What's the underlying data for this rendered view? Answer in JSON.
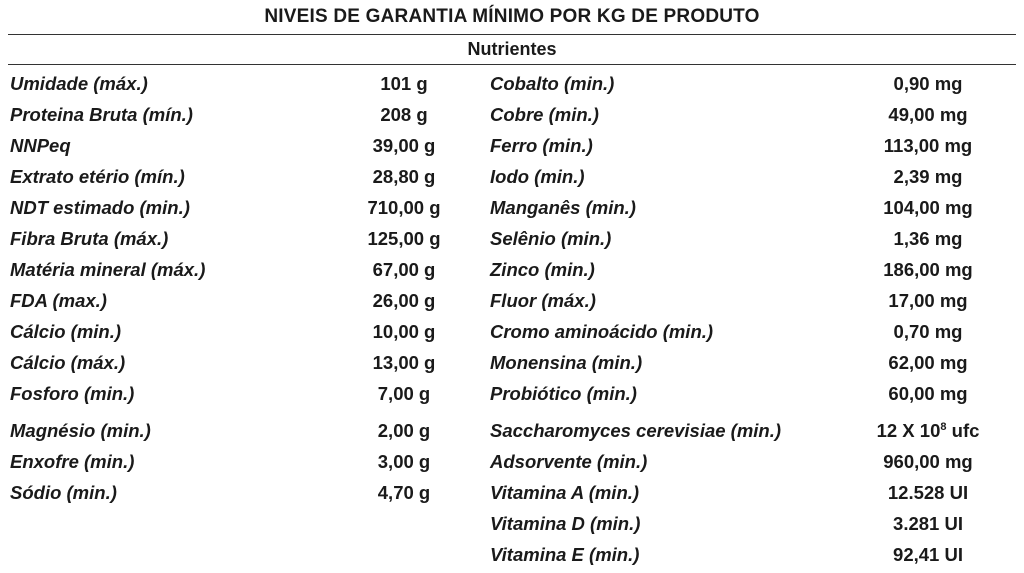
{
  "title": "NIVEIS DE GARANTIA MÍNIMO POR KG DE PRODUTO",
  "section": "Nutrientes",
  "left": [
    {
      "name": "Umidade (máx.)",
      "value": "101 g"
    },
    {
      "name": "Proteina Bruta (mín.)",
      "value": "208 g"
    },
    {
      "name": "NNPeq",
      "value": "39,00 g"
    },
    {
      "name": "Extrato etério (mín.)",
      "value": "28,80 g"
    },
    {
      "name": "NDT estimado (min.)",
      "value": "710,00 g"
    },
    {
      "name": "Fibra Bruta (máx.)",
      "value": "125,00 g"
    },
    {
      "name": "Matéria mineral (máx.)",
      "value": "67,00 g"
    },
    {
      "name": "FDA (max.)",
      "value": "26,00 g"
    },
    {
      "name": "Cálcio (min.)",
      "value": "10,00 g"
    },
    {
      "name": "Cálcio (máx.)",
      "value": "13,00 g"
    },
    {
      "name": "Fosforo (min.)",
      "value": "7,00 g"
    },
    {
      "name": "Magnésio (min.)",
      "value": "2,00 g"
    },
    {
      "name": "Enxofre (min.)",
      "value": "3,00 g"
    },
    {
      "name": "Sódio (min.)",
      "value": "4,70 g"
    }
  ],
  "right": [
    {
      "name": "Cobalto (min.)",
      "value": "0,90 mg"
    },
    {
      "name": "Cobre (min.)",
      "value": "49,00 mg"
    },
    {
      "name": "Ferro (min.)",
      "value": "113,00 mg"
    },
    {
      "name": "Iodo (min.)",
      "value": "2,39 mg"
    },
    {
      "name": "Manganês (min.)",
      "value": "104,00 mg"
    },
    {
      "name": "Selênio (min.)",
      "value": "1,36 mg"
    },
    {
      "name": "Zinco (min.)",
      "value": "186,00 mg"
    },
    {
      "name": "Fluor (máx.)",
      "value": "17,00 mg"
    },
    {
      "name": "Cromo aminoácido (min.)",
      "value": "0,70 mg"
    },
    {
      "name": "Monensina (min.)",
      "value": "62,00 mg"
    },
    {
      "name": "Probiótico (min.)",
      "value": "60,00 mg"
    },
    {
      "name": "Saccharomyces cerevisiae (min.)",
      "value_base": "12 X 10",
      "value_exp": "8",
      "value_unit": " ufc"
    },
    {
      "name": "Adsorvente (min.)",
      "value": "960,00 mg"
    },
    {
      "name": "Vitamina A (min.)",
      "value": "12.528 UI"
    },
    {
      "name": "Vitamina D (min.)",
      "value": "3.281 UI"
    },
    {
      "name": "Vitamina E (min.)",
      "value": "92,41 UI"
    }
  ]
}
